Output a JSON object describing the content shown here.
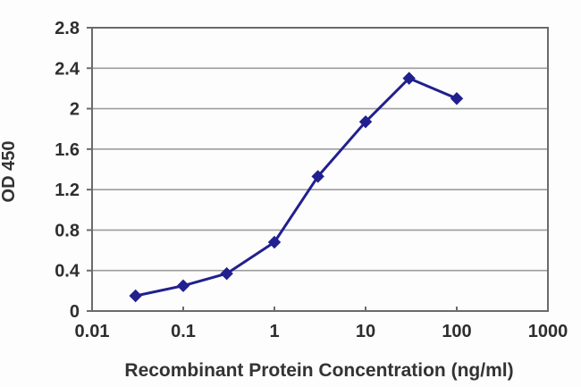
{
  "chart_data": {
    "type": "line",
    "title": "",
    "xlabel": "Recombinant Protein Concentration (ng/ml)",
    "ylabel": "OD 450",
    "x_scale": "log",
    "xlim": [
      0.01,
      1000
    ],
    "ylim": [
      0,
      2.8
    ],
    "x_ticks": [
      "0.01",
      "0.1",
      "1",
      "10",
      "100",
      "1000"
    ],
    "y_ticks": [
      "0",
      "0.4",
      "0.8",
      "1.2",
      "1.6",
      "2",
      "2.4",
      "2.8"
    ],
    "grid": "horizontal",
    "legend": "none",
    "series": [
      {
        "name": "OD 450",
        "marker": "diamond",
        "x": [
          0.03,
          0.1,
          0.3,
          1,
          3,
          10,
          30,
          100
        ],
        "values": [
          0.15,
          0.25,
          0.37,
          0.68,
          1.33,
          1.87,
          2.3,
          2.1
        ]
      }
    ],
    "colors": {
      "line": "#21208e",
      "marker": "#21208e",
      "grid": "#9d9d9d",
      "frame": "#6b6b6b",
      "text": "#2e2e2e",
      "background": "#fdfdfd"
    }
  }
}
